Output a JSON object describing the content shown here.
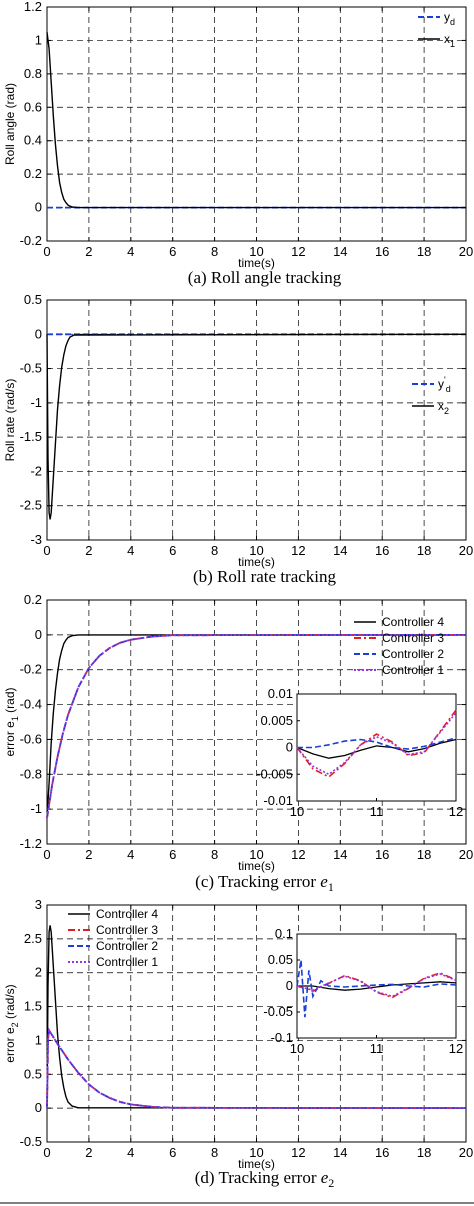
{
  "chart_data": [
    {
      "type": "line",
      "caption": "(a) Roll angle tracking",
      "xlabel": "time(s)",
      "ylabel": "Roll angle (rad)",
      "xlim": [
        0,
        20
      ],
      "ylim": [
        -0.2,
        1.2
      ],
      "xticks": [
        "0",
        "2",
        "4",
        "6",
        "8",
        "10",
        "12",
        "14",
        "16",
        "18",
        "20"
      ],
      "yticks": [
        "1.2",
        "1",
        "0.8",
        "0.6",
        "0.4",
        "0.2",
        "0",
        "-0.2"
      ],
      "grid": true,
      "legend": "top-right",
      "series": [
        {
          "name": "yd",
          "color": "#1a3fd6",
          "dash": "dashed",
          "x": [
            0,
            20
          ],
          "y": [
            0,
            0
          ]
        },
        {
          "name": "x1",
          "color": "#000000",
          "dash": "solid",
          "x": [
            0,
            0.1,
            0.2,
            0.3,
            0.4,
            0.5,
            0.6,
            0.7,
            0.8,
            0.9,
            1.0,
            1.1,
            1.2,
            1.5,
            20
          ],
          "y": [
            1.05,
            0.95,
            0.75,
            0.55,
            0.38,
            0.25,
            0.15,
            0.09,
            0.05,
            0.03,
            0.015,
            0.008,
            0.004,
            0.0,
            0.0
          ]
        }
      ]
    },
    {
      "type": "line",
      "caption": "(b) Roll rate tracking",
      "xlabel": "time(s)",
      "ylabel": "Roll rate (rad/s)",
      "xlim": [
        0,
        20
      ],
      "ylim": [
        -3,
        0.5
      ],
      "xticks": [
        "0",
        "2",
        "4",
        "6",
        "8",
        "10",
        "12",
        "14",
        "16",
        "18",
        "20"
      ],
      "yticks": [
        "0.5",
        "0",
        "-0.5",
        "-1",
        "-1.5",
        "-2",
        "-2.5",
        "-3"
      ],
      "grid": true,
      "legend": "right",
      "series": [
        {
          "name": "yd'",
          "color": "#1a3fd6",
          "dash": "dashed",
          "x": [
            0,
            20
          ],
          "y": [
            0,
            0
          ]
        },
        {
          "name": "x2",
          "color": "#000000",
          "dash": "solid",
          "x": [
            0,
            0.05,
            0.1,
            0.15,
            0.2,
            0.3,
            0.4,
            0.5,
            0.6,
            0.7,
            0.8,
            0.9,
            1.0,
            1.1,
            1.3,
            20
          ],
          "y": [
            0,
            -1.8,
            -2.6,
            -2.7,
            -2.6,
            -2.1,
            -1.6,
            -1.1,
            -0.75,
            -0.48,
            -0.3,
            -0.17,
            -0.09,
            -0.04,
            -0.01,
            0
          ]
        }
      ]
    },
    {
      "type": "line",
      "caption": "(c) Tracking error ",
      "caption_var": "e",
      "caption_sub": "1",
      "xlabel": "time(s)",
      "ylabel": "error e1 (rad)",
      "xlim": [
        0,
        20
      ],
      "ylim": [
        -1.2,
        0.2
      ],
      "xticks": [
        "0",
        "2",
        "4",
        "6",
        "8",
        "10",
        "12",
        "14",
        "16",
        "18",
        "20"
      ],
      "yticks": [
        "0.2",
        "0",
        "-0.2",
        "-0.4",
        "-0.6",
        "-0.8",
        "-1",
        "-1.2"
      ],
      "grid": true,
      "legend": "right",
      "series": [
        {
          "name": "Controller 4",
          "color": "#000000",
          "dash": "solid",
          "x": [
            0,
            0.1,
            0.2,
            0.3,
            0.4,
            0.5,
            0.6,
            0.7,
            0.8,
            0.9,
            1.0,
            1.2,
            1.5,
            20
          ],
          "y": [
            -1.05,
            -0.85,
            -0.62,
            -0.45,
            -0.32,
            -0.22,
            -0.14,
            -0.09,
            -0.05,
            -0.03,
            -0.015,
            -0.005,
            0,
            0
          ]
        },
        {
          "name": "Controller 3",
          "color": "#e02020",
          "dash": "dashdot",
          "x": [
            0,
            0.25,
            0.5,
            0.75,
            1.0,
            1.5,
            2.0,
            2.5,
            3.0,
            3.5,
            4.0,
            5.0,
            6.0,
            20
          ],
          "y": [
            -1.05,
            -0.86,
            -0.7,
            -0.57,
            -0.46,
            -0.3,
            -0.19,
            -0.12,
            -0.075,
            -0.045,
            -0.028,
            -0.01,
            -0.002,
            0
          ]
        },
        {
          "name": "Controller 2",
          "color": "#1a3fd6",
          "dash": "dashed",
          "x": [
            0,
            0.25,
            0.5,
            0.75,
            1.0,
            1.5,
            2.0,
            2.5,
            3.0,
            3.5,
            4.0,
            5.0,
            6.0,
            20
          ],
          "y": [
            -1.05,
            -0.86,
            -0.7,
            -0.57,
            -0.46,
            -0.3,
            -0.19,
            -0.12,
            -0.075,
            -0.045,
            -0.028,
            -0.01,
            -0.002,
            0
          ]
        },
        {
          "name": "Controller 1",
          "color": "#9b30e0",
          "dash": "dotted",
          "x": [
            0,
            0.25,
            0.5,
            0.75,
            1.0,
            1.5,
            2.0,
            2.5,
            3.0,
            3.5,
            4.0,
            5.0,
            6.0,
            20
          ],
          "y": [
            -1.05,
            -0.86,
            -0.7,
            -0.57,
            -0.46,
            -0.3,
            -0.19,
            -0.12,
            -0.075,
            -0.045,
            -0.028,
            -0.01,
            -0.002,
            0
          ]
        }
      ],
      "inset": {
        "xlim": [
          10,
          12
        ],
        "ylim": [
          -0.01,
          0.01
        ],
        "xticks": [
          "10",
          "11",
          "12"
        ],
        "yticks": [
          "0.01",
          "0.005",
          "0",
          "-0.005",
          "-0.01"
        ],
        "series": [
          {
            "name": "Controller 4",
            "x": [
              10,
              10.2,
              10.4,
              10.6,
              10.8,
              11.0,
              11.2,
              11.4,
              11.6,
              11.8,
              12.0
            ],
            "y": [
              0,
              -0.0012,
              -0.002,
              -0.0015,
              -0.0005,
              0.0003,
              0.0,
              -0.0008,
              -0.0002,
              0.0008,
              0.0015
            ]
          },
          {
            "name": "Controller 3",
            "x": [
              10,
              10.2,
              10.4,
              10.6,
              10.8,
              11.0,
              11.2,
              11.4,
              11.6,
              11.8,
              12.0
            ],
            "y": [
              0,
              -0.004,
              -0.0055,
              -0.003,
              0.0005,
              0.0025,
              0.001,
              -0.0015,
              -0.001,
              0.003,
              0.007
            ]
          },
          {
            "name": "Controller 2",
            "x": [
              10,
              10.2,
              10.4,
              10.6,
              10.8,
              11.0,
              11.2,
              11.4,
              11.6,
              11.8,
              12.0
            ],
            "y": [
              0,
              0.0,
              0.0005,
              0.0012,
              0.0015,
              0.001,
              0.0,
              -0.0003,
              0.0002,
              0.001,
              0.0018
            ]
          },
          {
            "name": "Controller 1",
            "x": [
              10,
              10.2,
              10.4,
              10.6,
              10.8,
              11.0,
              11.2,
              11.4,
              11.6,
              11.8,
              12.0
            ],
            "y": [
              0,
              -0.0035,
              -0.005,
              -0.0028,
              0.0005,
              0.002,
              0.0008,
              -0.0013,
              -0.0008,
              0.0028,
              0.0065
            ]
          }
        ]
      }
    },
    {
      "type": "line",
      "caption": "(d) Tracking error ",
      "caption_var": "e",
      "caption_sub": "2",
      "xlabel": "time(s)",
      "ylabel": "error e2 (rad/s)",
      "xlim": [
        0,
        20
      ],
      "ylim": [
        -0.5,
        3
      ],
      "xticks": [
        "0",
        "2",
        "4",
        "6",
        "8",
        "10",
        "12",
        "14",
        "16",
        "18",
        "20"
      ],
      "yticks": [
        "3",
        "2.5",
        "2",
        "1.5",
        "1",
        "0.5",
        "0",
        "-0.5"
      ],
      "grid": true,
      "legend": "top-left",
      "series": [
        {
          "name": "Controller 4",
          "color": "#000000",
          "dash": "solid",
          "x": [
            0,
            0.05,
            0.1,
            0.15,
            0.2,
            0.3,
            0.4,
            0.5,
            0.6,
            0.7,
            0.8,
            0.9,
            1.0,
            1.2,
            1.5,
            20
          ],
          "y": [
            0,
            1.8,
            2.6,
            2.7,
            2.6,
            2.1,
            1.6,
            1.1,
            0.75,
            0.48,
            0.3,
            0.17,
            0.09,
            0.03,
            0.005,
            0
          ]
        },
        {
          "name": "Controller 3",
          "color": "#e02020",
          "dash": "dashdot",
          "x": [
            0,
            0.05,
            0.1,
            0.2,
            0.5,
            1.0,
            1.5,
            2.0,
            2.5,
            3.0,
            3.5,
            4.0,
            5.0,
            6.0,
            20
          ],
          "y": [
            0,
            1.0,
            1.15,
            1.1,
            0.95,
            0.72,
            0.52,
            0.35,
            0.23,
            0.15,
            0.09,
            0.055,
            0.02,
            0.005,
            0
          ]
        },
        {
          "name": "Controller 2",
          "color": "#1a3fd6",
          "dash": "dashed",
          "x": [
            0,
            0.05,
            0.1,
            0.2,
            0.5,
            1.0,
            1.5,
            2.0,
            2.5,
            3.0,
            3.5,
            4.0,
            5.0,
            6.0,
            20
          ],
          "y": [
            0,
            1.0,
            1.15,
            1.1,
            0.95,
            0.72,
            0.52,
            0.35,
            0.23,
            0.15,
            0.09,
            0.055,
            0.02,
            0.005,
            0
          ]
        },
        {
          "name": "Controller 1",
          "color": "#9b30e0",
          "dash": "dotted",
          "x": [
            0,
            0.05,
            0.1,
            0.2,
            0.5,
            1.0,
            1.5,
            2.0,
            2.5,
            3.0,
            3.5,
            4.0,
            5.0,
            6.0,
            20
          ],
          "y": [
            0,
            1.0,
            1.15,
            1.1,
            0.95,
            0.72,
            0.52,
            0.35,
            0.23,
            0.15,
            0.09,
            0.055,
            0.02,
            0.005,
            0
          ]
        }
      ],
      "inset": {
        "xlim": [
          10,
          12
        ],
        "ylim": [
          -0.1,
          0.1
        ],
        "xticks": [
          "10",
          "11",
          "12"
        ],
        "yticks": [
          "0.1",
          "0.05",
          "0",
          "-0.05",
          "-0.1"
        ],
        "series": [
          {
            "name": "Controller 4",
            "x": [
              10,
              10.2,
              10.4,
              10.6,
              10.8,
              11.0,
              11.2,
              11.4,
              11.6,
              11.8,
              12.0
            ],
            "y": [
              0,
              0.0,
              -0.005,
              -0.008,
              -0.006,
              -0.002,
              0.002,
              0.004,
              0.006,
              0.008,
              0.006
            ]
          },
          {
            "name": "Controller 3",
            "x": [
              10,
              10.2,
              10.4,
              10.6,
              10.8,
              11.0,
              11.2,
              11.4,
              11.6,
              11.8,
              12.0
            ],
            "y": [
              0,
              -0.01,
              0.005,
              0.02,
              0.01,
              -0.012,
              -0.022,
              -0.005,
              0.015,
              0.025,
              0.012
            ]
          },
          {
            "name": "Controller 2",
            "x": [
              10,
              10.05,
              10.1,
              10.15,
              10.2,
              10.3,
              10.4,
              10.6,
              10.8,
              11.0,
              11.2,
              11.4,
              11.6,
              11.8,
              12.0
            ],
            "y": [
              0,
              0.05,
              -0.06,
              0.03,
              -0.02,
              0.01,
              0.0,
              -0.002,
              0.0,
              0.002,
              0.003,
              0.0,
              -0.002,
              0.004,
              0.002
            ]
          },
          {
            "name": "Controller 1",
            "x": [
              10,
              10.2,
              10.4,
              10.6,
              10.8,
              11.0,
              11.2,
              11.4,
              11.6,
              11.8,
              12.0
            ],
            "y": [
              0,
              -0.008,
              0.006,
              0.019,
              0.009,
              -0.011,
              -0.02,
              -0.004,
              0.014,
              0.023,
              0.011
            ]
          }
        ]
      }
    }
  ],
  "legend_labels": {
    "a": [
      "y",
      "x"
    ],
    "b": [
      "y",
      "x"
    ]
  }
}
